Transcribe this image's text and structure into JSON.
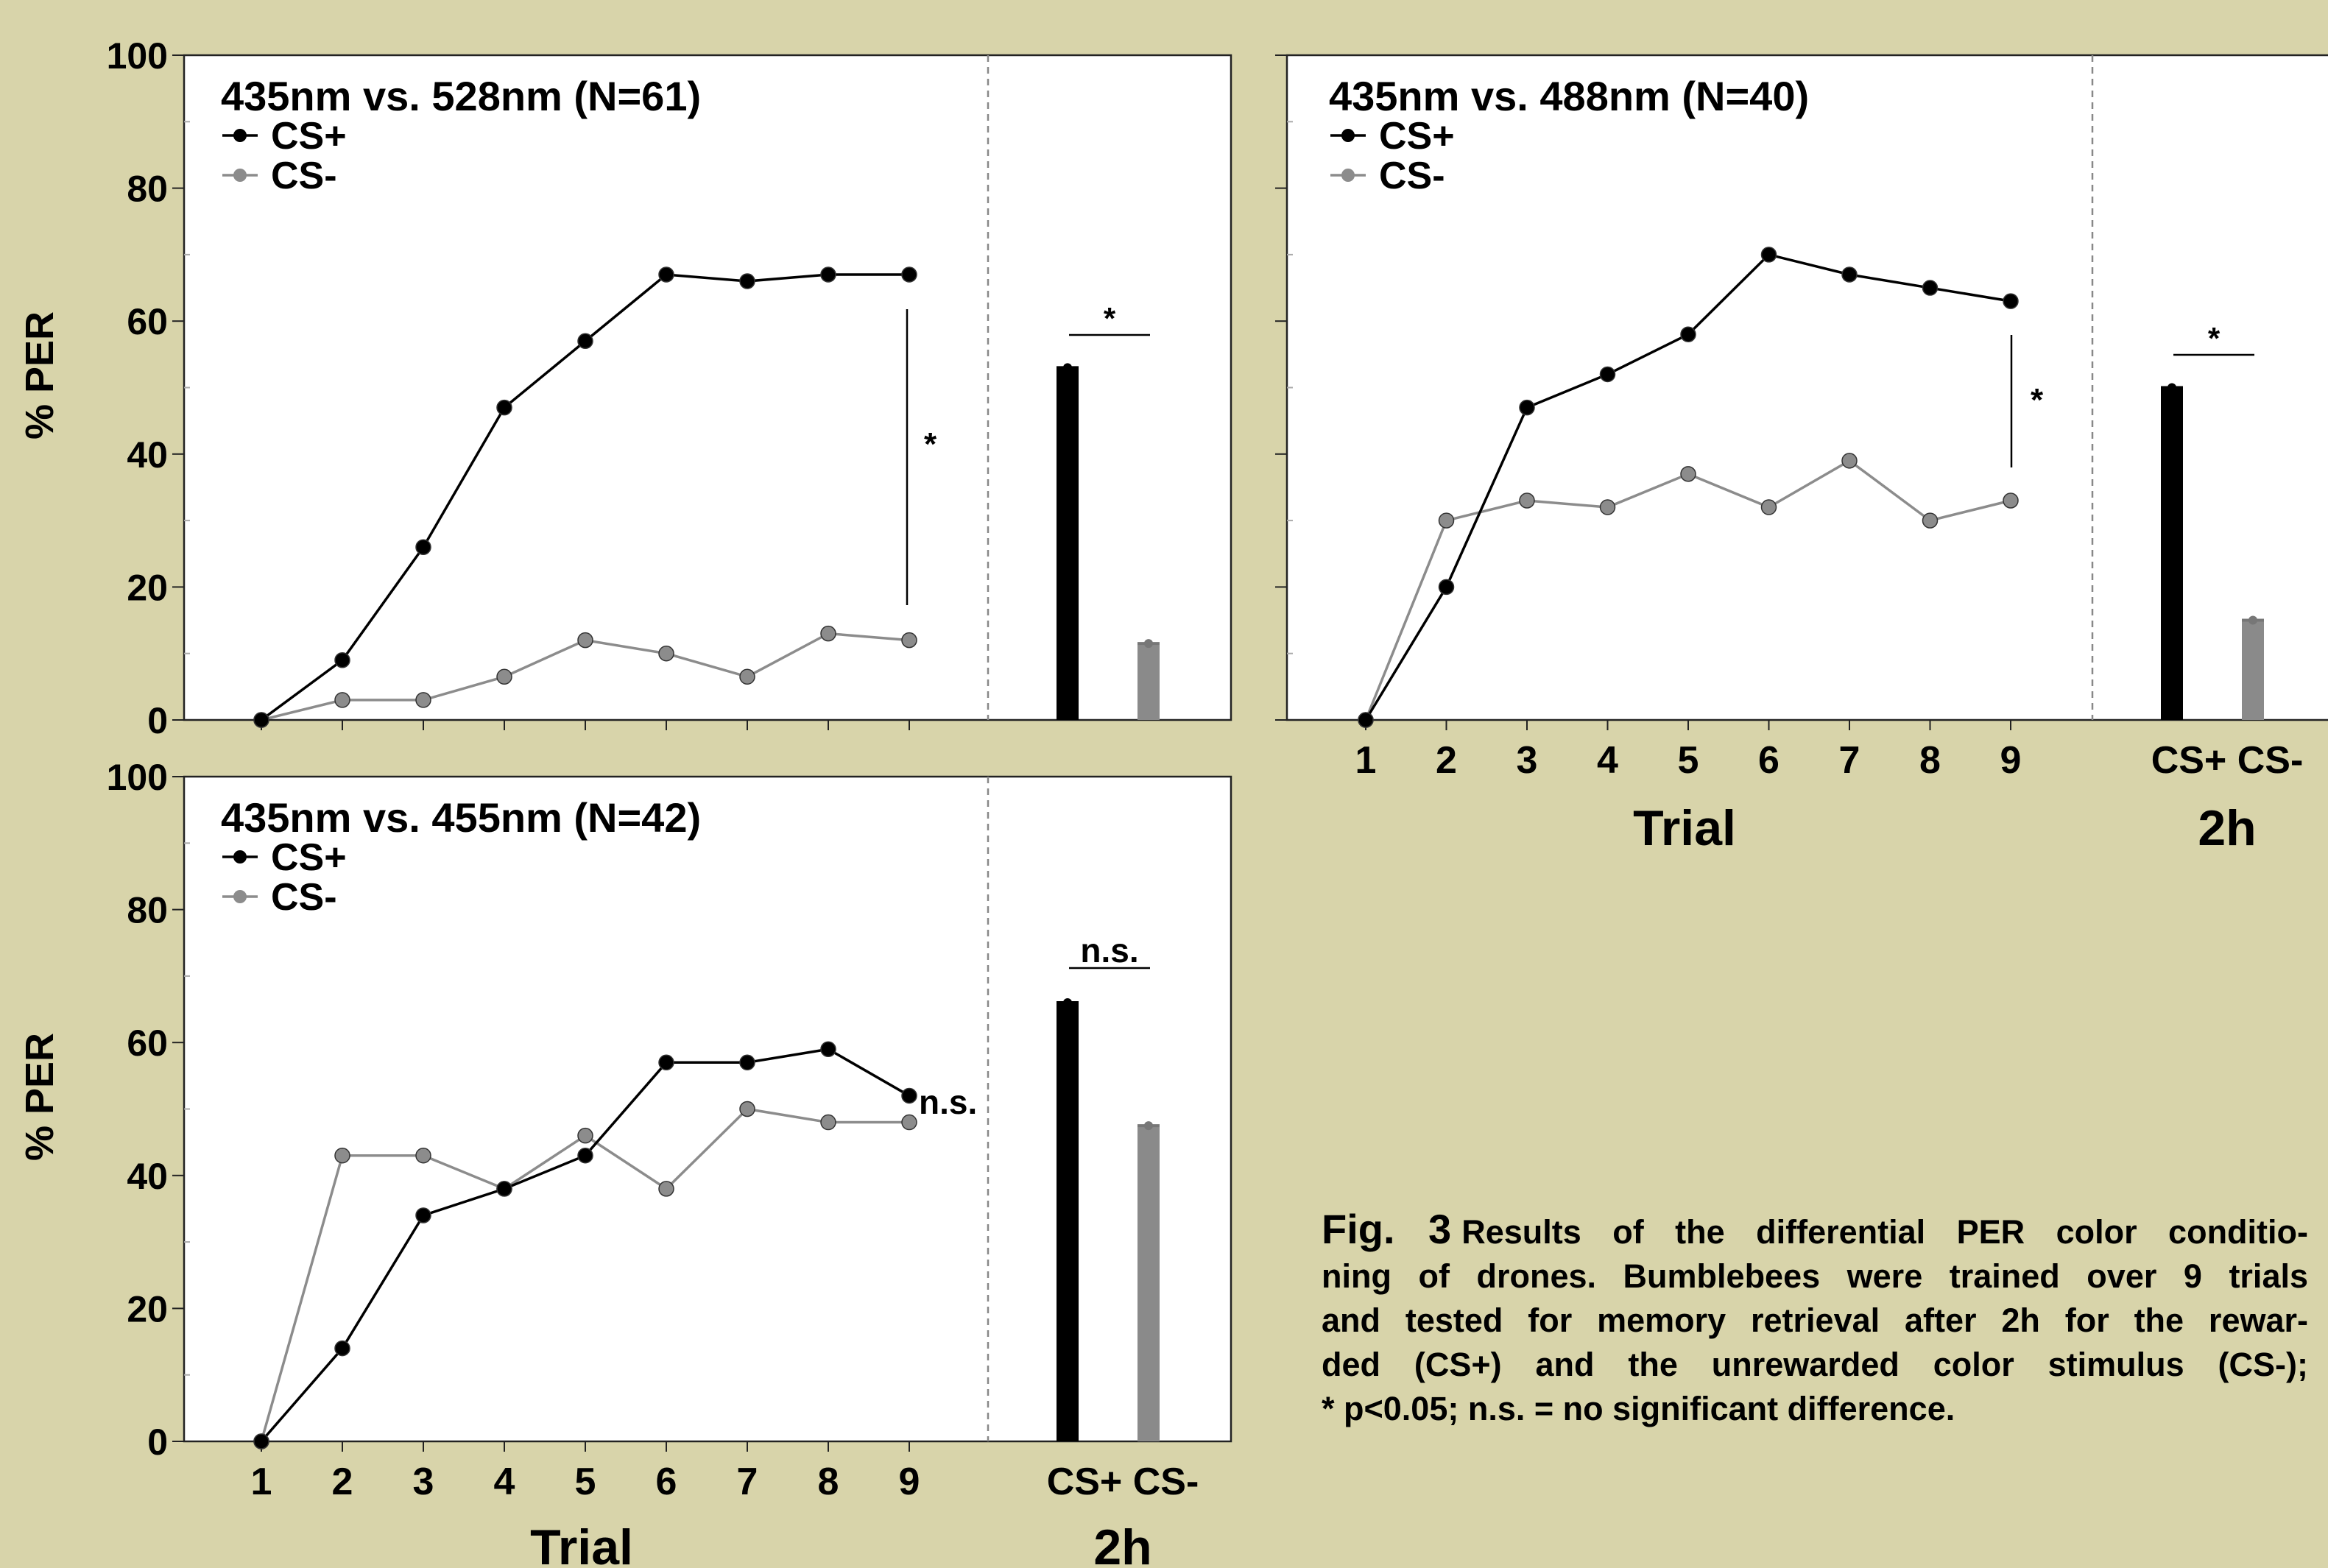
{
  "chart_data": [
    {
      "type": "line",
      "title": "435nm vs.  528nm (N=61)",
      "ylabel": "% PER",
      "xlabel": "",
      "ylim": [
        0,
        100
      ],
      "yticks": [
        "0",
        "20",
        "40",
        "60",
        "80",
        "100"
      ],
      "categories": [
        "1",
        "2",
        "3",
        "4",
        "5",
        "6",
        "7",
        "8",
        "9"
      ],
      "series": [
        {
          "name": "CS+",
          "color": "#000000",
          "values": [
            0,
            9,
            26,
            47,
            57,
            67,
            66,
            67,
            67
          ]
        },
        {
          "name": "CS-",
          "color": "#8c8c8c",
          "values": [
            0,
            3,
            3,
            6.5,
            12,
            10,
            6.5,
            13,
            12
          ]
        }
      ],
      "trial_significance": "*",
      "test": {
        "labels": [
          "CS+",
          "CS-"
        ],
        "values": [
          53,
          11.5
        ],
        "group_label": "",
        "significance": "*"
      }
    },
    {
      "type": "line",
      "title": "435nm vs.  488nm (N=40)",
      "ylabel": "",
      "xlabel": "Trial",
      "ylim": [
        0,
        100
      ],
      "yticks": [],
      "categories": [
        "1",
        "2",
        "3",
        "4",
        "5",
        "6",
        "7",
        "8",
        "9"
      ],
      "series": [
        {
          "name": "CS+",
          "color": "#000000",
          "values": [
            0,
            20,
            47,
            52,
            58,
            70,
            67,
            65,
            63
          ]
        },
        {
          "name": "CS-",
          "color": "#8c8c8c",
          "values": [
            0,
            30,
            33,
            32,
            37,
            32,
            39,
            30,
            33
          ]
        }
      ],
      "trial_significance": "*",
      "test": {
        "labels": [
          "CS+",
          "CS-"
        ],
        "values": [
          50,
          15
        ],
        "group_label": "2h",
        "significance": "*"
      }
    },
    {
      "type": "line",
      "title": "435nm vs.  455nm (N=42)",
      "ylabel": "% PER",
      "xlabel": "Trial",
      "ylim": [
        0,
        100
      ],
      "yticks": [
        "0",
        "20",
        "40",
        "60",
        "80",
        "100"
      ],
      "categories": [
        "1",
        "2",
        "3",
        "4",
        "5",
        "6",
        "7",
        "8",
        "9"
      ],
      "series": [
        {
          "name": "CS+",
          "color": "#000000",
          "values": [
            0,
            14,
            34,
            38,
            43,
            57,
            57,
            59,
            52
          ]
        },
        {
          "name": "CS-",
          "color": "#8c8c8c",
          "values": [
            0,
            43,
            43,
            38,
            46,
            38,
            50,
            48,
            48
          ]
        }
      ],
      "trial_significance": "n.s.",
      "test": {
        "labels": [
          "CS+",
          "CS-"
        ],
        "values": [
          66,
          47.5
        ],
        "group_label": "2h",
        "significance": "n.s."
      }
    }
  ],
  "caption": {
    "figure_label": "Fig. 3",
    "lines": [
      "Results of the differential PER color conditio-",
      "ning of drones. Bumblebees were trained over 9 trials",
      "and tested for memory retrieval after 2h for the rewar-",
      "ded (CS+) and the unrewarded color stimulus (CS-);",
      "* p<0.05; n.s. = no significant difference."
    ]
  }
}
